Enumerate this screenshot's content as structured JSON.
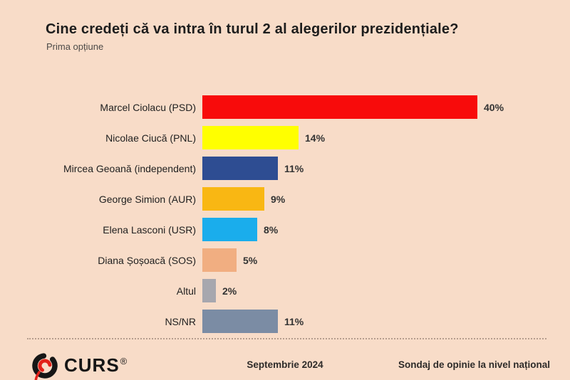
{
  "header": {
    "title": "Cine credeți că va intra în turul 2 al alegerilor prezidențiale?",
    "subtitle": "Prima opțiune"
  },
  "chart_data": {
    "type": "bar",
    "orientation": "horizontal",
    "title": "Cine credeți că va intra în turul 2 al alegerilor prezidențiale?",
    "subtitle": "Prima opțiune",
    "categories": [
      "Marcel Ciolacu (PSD)",
      "Nicolae Ciucă (PNL)",
      "Mircea Geoană (independent)",
      "George Simion (AUR)",
      "Elena Lasconi (USR)",
      "Diana Șoșoacă (SOS)",
      "Altul",
      "NS/NR"
    ],
    "values": [
      40,
      14,
      11,
      9,
      8,
      5,
      2,
      11
    ],
    "value_labels": [
      "40%",
      "14%",
      "11%",
      "9%",
      "8%",
      "5%",
      "2%",
      "11%"
    ],
    "bar_colors": [
      "#f80b0b",
      "#ffff00",
      "#2e4d92",
      "#f9b713",
      "#1aadec",
      "#f1ae81",
      "#a7a7ae",
      "#7b8ca4"
    ],
    "xlim": [
      0,
      42
    ],
    "grid": false,
    "legend": false,
    "value_label_position": "outside-end"
  },
  "style": {
    "background_color": "#f8dcc8",
    "logo_black": "#161616",
    "logo_red": "#e32119"
  },
  "footer": {
    "logo_text": "CURS",
    "registered_mark": "®",
    "date": "Septembrie 2024",
    "note": "Sondaj de opinie la nivel național"
  }
}
